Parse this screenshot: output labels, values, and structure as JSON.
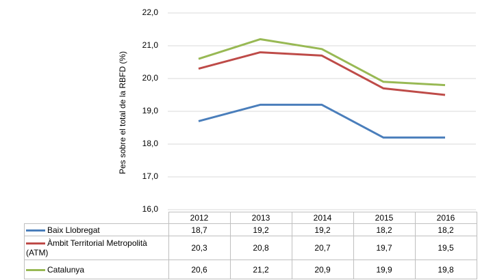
{
  "chart_data": {
    "type": "line",
    "y_label": "Pes sobre el total de la RBFD (%)",
    "categories": [
      "2012",
      "2013",
      "2014",
      "2015",
      "2016"
    ],
    "series": [
      {
        "name": "Baix Llobregat",
        "color": "#4a7ebb",
        "values": [
          18.7,
          19.2,
          19.2,
          18.2,
          18.2
        ],
        "value_labels": [
          "18,7",
          "19,2",
          "19,2",
          "18,2",
          "18,2"
        ]
      },
      {
        "name": "Àmbit Territorial Metropolità (ATM)",
        "color": "#be4b48",
        "values": [
          20.3,
          20.8,
          20.7,
          19.7,
          19.5
        ],
        "value_labels": [
          "20,3",
          "20,8",
          "20,7",
          "19,7",
          "19,5"
        ]
      },
      {
        "name": "Catalunya",
        "color": "#98b954",
        "values": [
          20.6,
          21.2,
          20.9,
          19.9,
          19.8
        ],
        "value_labels": [
          "20,6",
          "21,2",
          "20,9",
          "19,9",
          "19,8"
        ]
      }
    ],
    "ylim": [
      16,
      22
    ],
    "yticks": [
      {
        "value": 16,
        "label": "16,0"
      },
      {
        "value": 17,
        "label": "17,0"
      },
      {
        "value": 18,
        "label": "18,0"
      },
      {
        "value": 19,
        "label": "19,0"
      },
      {
        "value": 20,
        "label": "20,0"
      },
      {
        "value": 21,
        "label": "21,0"
      },
      {
        "value": 22,
        "label": "22,0"
      }
    ],
    "grid": true
  }
}
